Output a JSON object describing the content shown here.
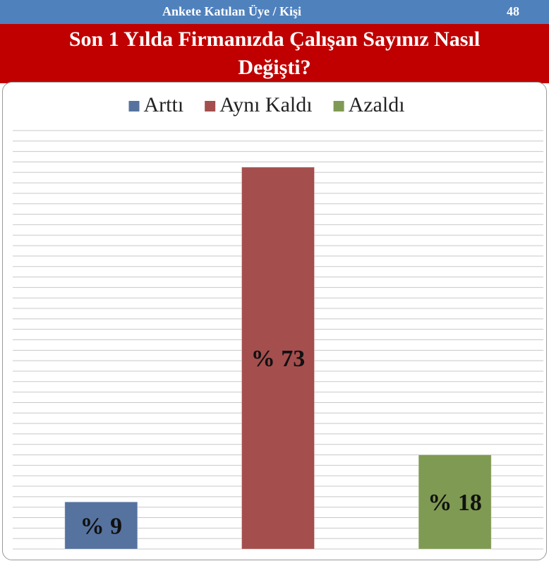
{
  "header": {
    "label": "Ankete Katılan Üye / Kişi",
    "count": 48
  },
  "chart_data": {
    "type": "bar",
    "title": "Son 1 Yılda Firmanızda Çalışan Sayınız Nasıl Değişti?",
    "series": [
      {
        "name": "Arttı",
        "color": "#56739f",
        "values": [
          9
        ],
        "value_labels": [
          "% 9"
        ]
      },
      {
        "name": "Aynı Kaldı",
        "color": "#a54e4e",
        "values": [
          73
        ],
        "value_labels": [
          "% 73"
        ]
      },
      {
        "name": "Azaldı",
        "color": "#7f9a52",
        "values": [
          18
        ],
        "value_labels": [
          "% 18"
        ]
      }
    ],
    "ylim": [
      0,
      80
    ],
    "yticks": [
      0,
      2,
      4,
      6,
      8,
      10,
      12,
      14,
      16,
      18,
      20,
      22,
      24,
      26,
      28,
      30,
      32,
      34,
      36,
      38,
      40,
      42,
      44,
      46,
      48,
      50,
      52,
      54,
      56,
      58,
      60,
      62,
      64,
      66,
      68,
      70,
      72,
      74,
      76,
      78,
      80
    ],
    "grid": true,
    "show_tick_labels": false,
    "legend": "top"
  }
}
